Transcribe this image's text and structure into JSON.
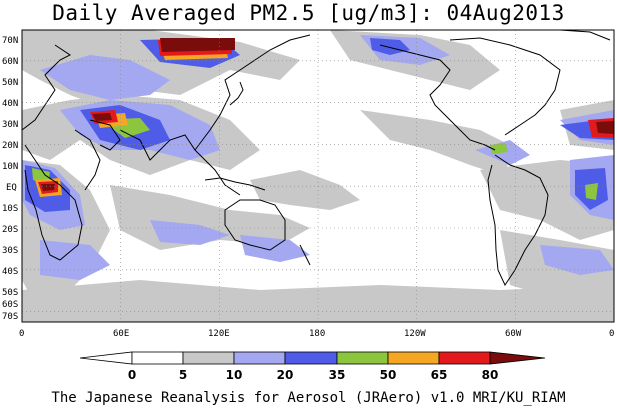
{
  "title": "Daily Averaged PM2.5 [ug/m3]: 04Aug2013",
  "footer": "The Japanese Reanalysis for Aerosol (JRAero) v1.0 MRI/KU_RIAM",
  "map": {
    "lat_labels": [
      "70N",
      "60N",
      "50N",
      "40N",
      "30N",
      "20N",
      "10N",
      "EQ",
      "10S",
      "20S",
      "30S",
      "40S",
      "50S",
      "60S",
      "70S"
    ],
    "lon_labels": [
      "0",
      "60E",
      "120E",
      "180",
      "120W",
      "60W",
      "0"
    ]
  },
  "colorbar": {
    "levels": [
      "0",
      "5",
      "10",
      "20",
      "35",
      "50",
      "65",
      "80"
    ],
    "colors": [
      "#ffffff",
      "#c8c8c8",
      "#a3a8f0",
      "#4f5ce8",
      "#8cc63e",
      "#f5a623",
      "#e31a1c",
      "#7a0c0c"
    ],
    "colors_meaning": [
      "<0 white",
      "0-5 white",
      "5-10 gray",
      "10-20 light blue",
      "20-35 blue",
      "35-50 green",
      "50-65 orange",
      "65-80 red",
      ">80 dark red"
    ]
  }
}
